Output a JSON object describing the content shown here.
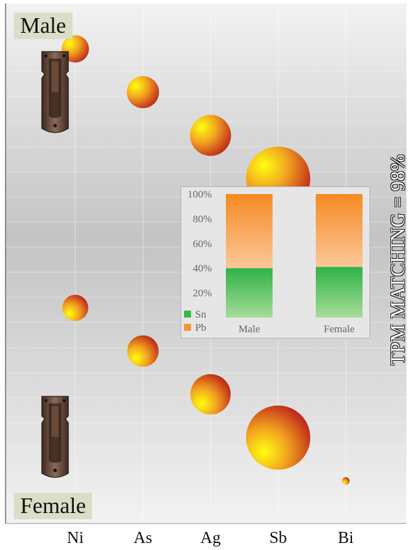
{
  "labels": {
    "top_group": "Male",
    "bottom_group": "Female",
    "side_text": "TPM MATCHING = 98%"
  },
  "icons": {
    "top_artifact": "belt-fitting-image",
    "bottom_artifact": "belt-fitting-image"
  },
  "colors": {
    "bubble_light": "#ffff10",
    "bubble_mid": "#f0a020",
    "bubble_dark": "#b81818",
    "sn": "#34b84a",
    "pb": "#f59230"
  },
  "chart_data": [
    {
      "type": "scatter",
      "x_categories": [
        "Ni",
        "As",
        "Ag",
        "Sb",
        "Bi"
      ],
      "encoding": "bubble size = relative element concentration",
      "series": [
        {
          "name": "Male",
          "values": [
            0.4,
            0.47,
            0.6,
            0.94,
            0.11
          ]
        },
        {
          "name": "Female",
          "values": [
            0.38,
            0.46,
            0.59,
            0.94,
            0.11
          ]
        }
      ],
      "grid": true
    },
    {
      "type": "bar",
      "stacked": true,
      "categories": [
        "Male",
        "Female"
      ],
      "series": [
        {
          "name": "Sn",
          "values": [
            40,
            41
          ]
        },
        {
          "name": "Pb",
          "values": [
            60,
            59
          ]
        }
      ],
      "ylim": [
        0,
        100
      ],
      "yticks": [
        "20%",
        "40%",
        "60%",
        "80%",
        "100%"
      ],
      "legend": "bottom-left"
    }
  ]
}
